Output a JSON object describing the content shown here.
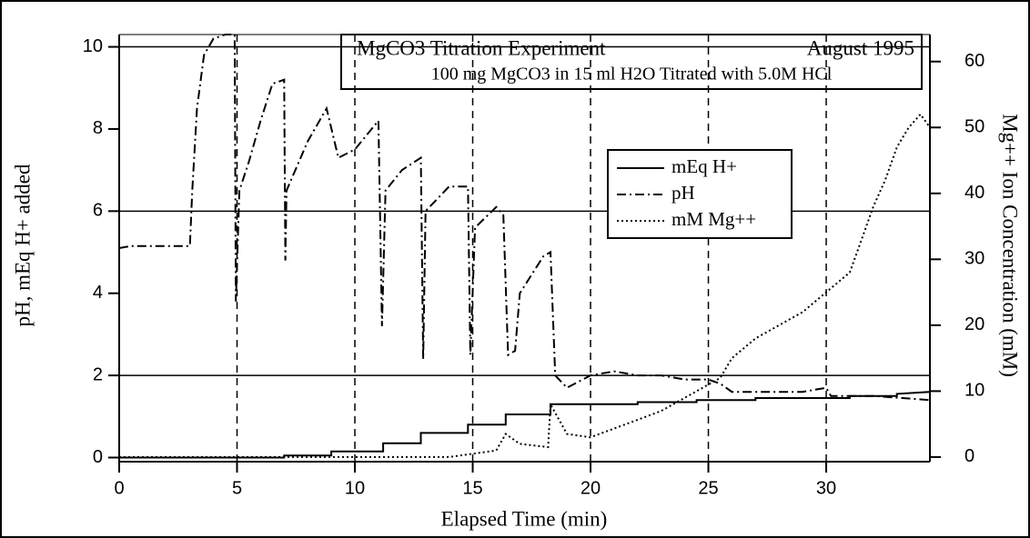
{
  "chart_data": {
    "type": "line",
    "title": "MgCO3 Titration Experiment",
    "date": "August 1995",
    "subtitle": "100 mg MgCO3 in 15 ml H2O Titrated with 5.0M HCl",
    "xlabel": "Elapsed Time (min)",
    "ylabel": "pH, mEq H+ added",
    "y2label": "Mg++ Ion Concentration (mM)",
    "xlim": [
      0,
      34.4
    ],
    "ylim": [
      -0.1,
      10.3
    ],
    "y2lim": [
      -0.7,
      64.1
    ],
    "xticks": [
      0,
      5,
      10,
      15,
      20,
      25,
      30
    ],
    "yticks": [
      0,
      2,
      4,
      6,
      8,
      10
    ],
    "y2ticks": [
      0,
      10,
      20,
      30,
      40,
      50,
      60
    ],
    "hlines": [
      2,
      6,
      10
    ],
    "vlines": [
      5,
      10,
      15,
      20,
      25,
      30
    ],
    "series": [
      {
        "name": "mEq H+",
        "color": "#000",
        "dash": "none",
        "x": [
          0,
          7,
          7,
          9,
          9,
          11.2,
          11.2,
          12.8,
          12.8,
          14.8,
          14.8,
          16.4,
          16.4,
          18.3,
          18.3,
          22,
          22,
          24.5,
          24.5,
          27,
          27,
          31,
          31,
          33,
          33,
          34.4
        ],
        "values": [
          0,
          0,
          0.05,
          0.05,
          0.15,
          0.15,
          0.35,
          0.35,
          0.6,
          0.6,
          0.8,
          0.8,
          1.05,
          1.05,
          1.3,
          1.3,
          1.35,
          1.35,
          1.4,
          1.4,
          1.45,
          1.45,
          1.5,
          1.5,
          1.55,
          1.6
        ]
      },
      {
        "name": "pH",
        "color": "#000",
        "dash": "10 4 2 4",
        "x": [
          0,
          0.5,
          3,
          3.1,
          3.3,
          3.6,
          4,
          4.5,
          4.9,
          4.95,
          5.1,
          5.5,
          6,
          6.5,
          7,
          7.05,
          7.1,
          8,
          8.8,
          9.3,
          10,
          11,
          11.15,
          11.3,
          12,
          12.8,
          12.9,
          13,
          14,
          14.8,
          14.9,
          15.1,
          16,
          16.3,
          16.5,
          16.8,
          17,
          18,
          18.3,
          18.5,
          19,
          20,
          21,
          22,
          23,
          24,
          25,
          25.5,
          26,
          28,
          29,
          30,
          30.2,
          32,
          34.4
        ],
        "values": [
          5.1,
          5.15,
          5.15,
          6.5,
          8.5,
          9.8,
          10.2,
          10.3,
          10.3,
          3.8,
          6.5,
          7.2,
          8.2,
          9.1,
          9.2,
          4.8,
          6.5,
          7.7,
          8.5,
          7.3,
          7.5,
          8.2,
          3.2,
          6.5,
          7.0,
          7.3,
          2.4,
          6.0,
          6.6,
          6.6,
          2.5,
          5.6,
          6.1,
          5.9,
          2.5,
          2.6,
          4.0,
          4.9,
          5.0,
          2.0,
          1.7,
          2.0,
          2.1,
          2.0,
          2.0,
          1.9,
          1.9,
          1.8,
          1.6,
          1.6,
          1.6,
          1.7,
          1.5,
          1.5,
          1.4
        ]
      },
      {
        "name": "mM Mg++",
        "color": "#000",
        "dash": "2 3",
        "axis": "y2",
        "x": [
          0,
          14,
          15,
          16,
          16.4,
          17,
          18.2,
          18.3,
          19,
          20,
          21.5,
          23,
          24.5,
          25.5,
          26,
          27,
          28,
          29,
          30,
          31,
          31.5,
          32,
          32.5,
          33,
          33.5,
          34,
          34.4
        ],
        "values": [
          0,
          0,
          0.5,
          1,
          3.5,
          2,
          1.5,
          8,
          3.5,
          3,
          5,
          7,
          10,
          12,
          15,
          18,
          20,
          22,
          25,
          28,
          33,
          38,
          42,
          47,
          50,
          52,
          50
        ]
      }
    ]
  }
}
